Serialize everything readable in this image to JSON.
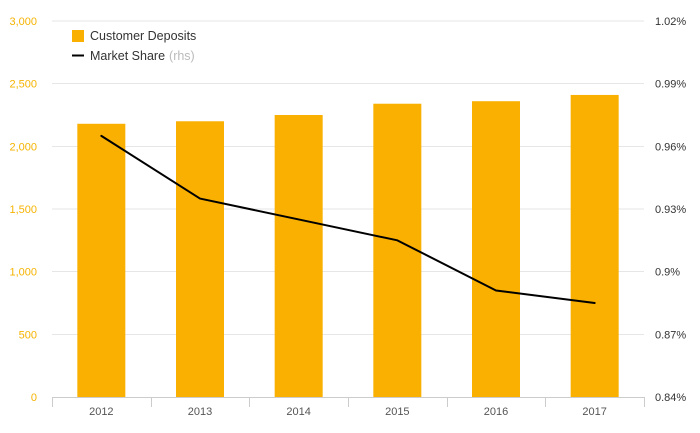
{
  "chart_data": {
    "type": "bar",
    "categories": [
      "2012",
      "2013",
      "2014",
      "2015",
      "2016",
      "2017"
    ],
    "series": [
      {
        "name": "Customer Deposits",
        "type": "bar",
        "axis": "left",
        "color": "#f9b000",
        "values": [
          2180,
          2200,
          2250,
          2340,
          2360,
          2410
        ]
      },
      {
        "name": "Market Share",
        "name_suffix": "(rhs)",
        "type": "line",
        "axis": "right",
        "color": "#000000",
        "values": [
          0.965,
          0.935,
          0.925,
          0.915,
          0.891,
          0.885
        ]
      }
    ],
    "y_left": {
      "ylim": [
        0,
        3000
      ],
      "ticks": [
        "0",
        "500",
        "1,000",
        "1,500",
        "2,000",
        "2,500",
        "3,000"
      ],
      "tick_color": "#f5b301"
    },
    "y_right": {
      "ylim": [
        0.84,
        1.02
      ],
      "ticks": [
        "0.84%",
        "0.87%",
        "0.9%",
        "0.93%",
        "0.96%",
        "0.99%",
        "1.02%"
      ]
    },
    "title": "",
    "xlabel": "",
    "ylabel": "",
    "grid": true,
    "legend_position": "top-left"
  }
}
